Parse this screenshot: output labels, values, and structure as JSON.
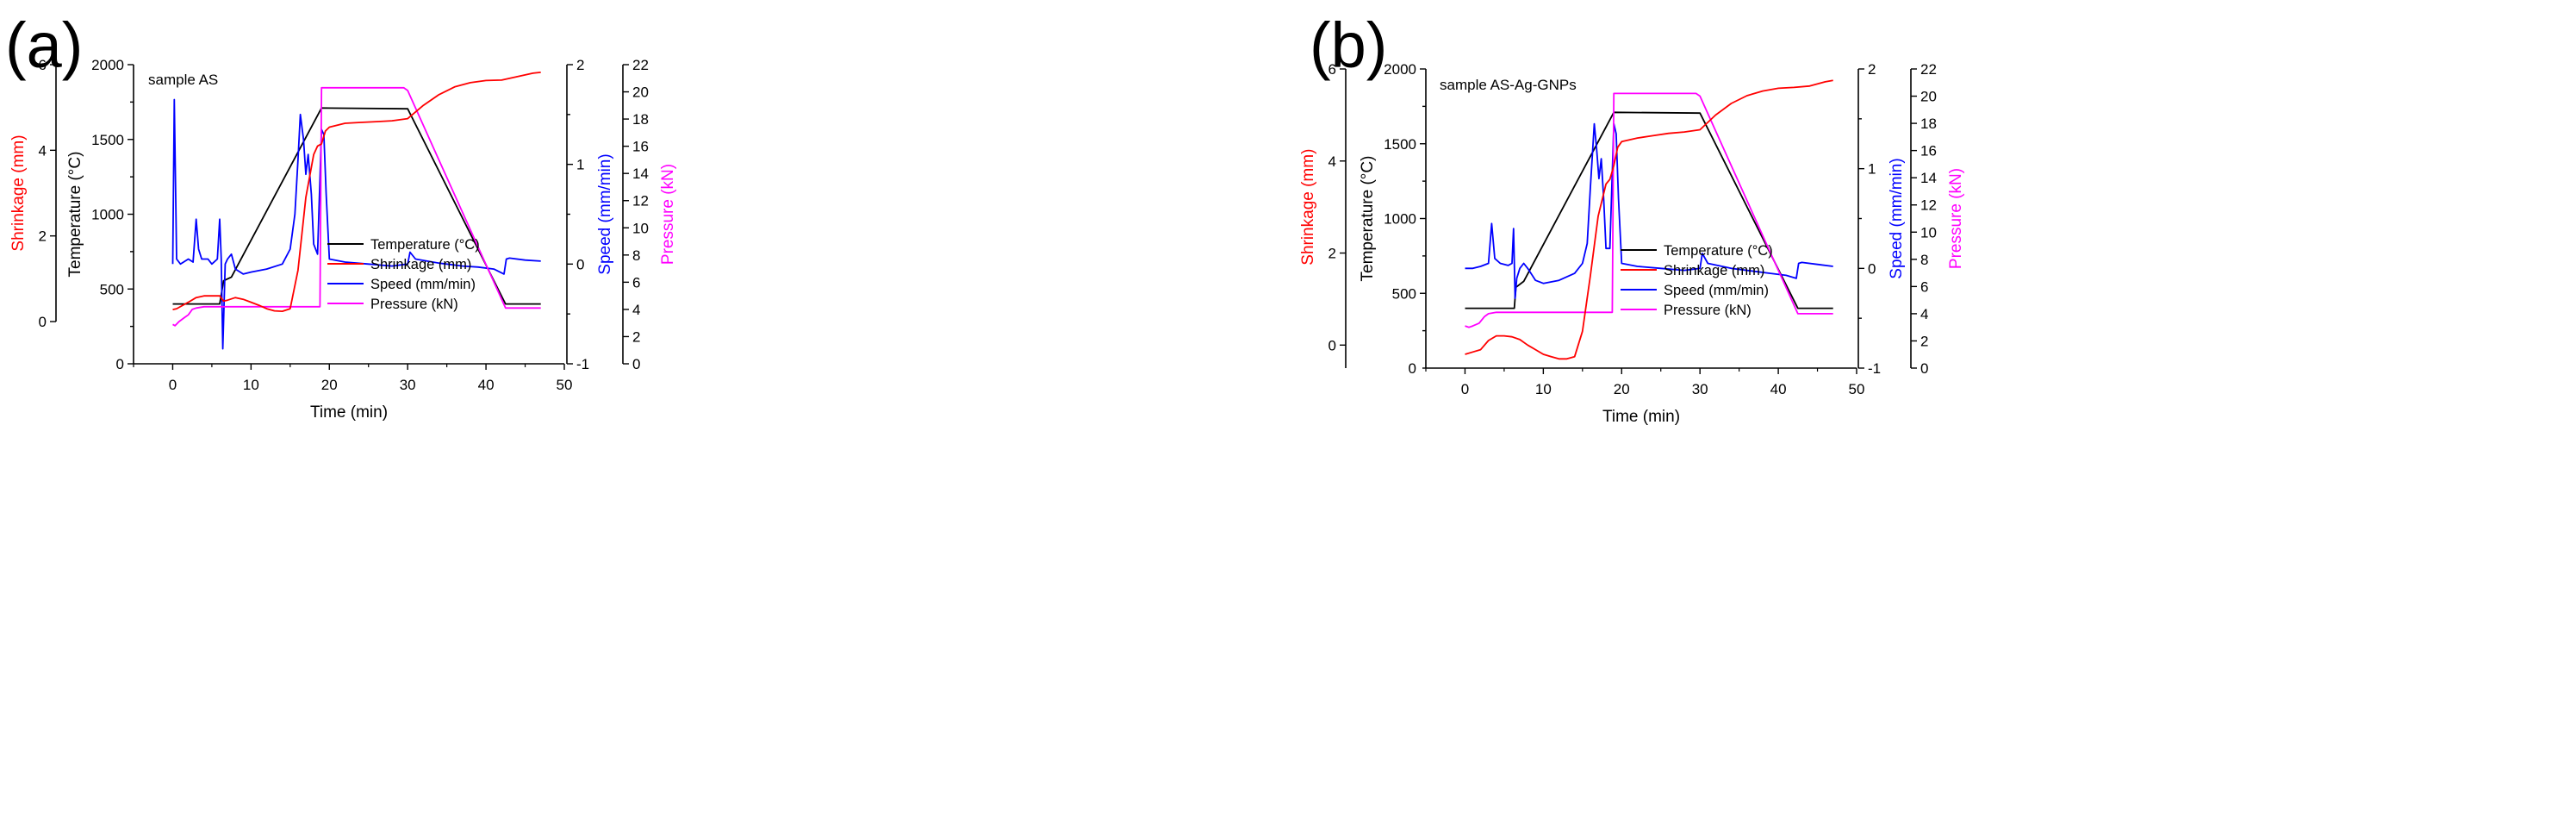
{
  "chart_data": [
    {
      "type": "line",
      "panel_label": "(a)",
      "annotation": "sample AS",
      "xlabel": "Time (min)",
      "xlim": [
        -5,
        50
      ],
      "xticks": [
        0,
        10,
        20,
        30,
        40,
        50
      ],
      "axes": {
        "shrinkage": {
          "label": "Shrinkage (mm)",
          "color": "#ff0000",
          "range": [
            0,
            6
          ],
          "ticks": [
            0,
            2,
            4,
            6
          ]
        },
        "temperature": {
          "label": "Temperature (°C)",
          "color": "#000000",
          "range": [
            0,
            2000
          ],
          "ticks": [
            0,
            500,
            1000,
            1500,
            2000
          ]
        },
        "speed": {
          "label": "Speed (mm/min)",
          "color": "#0000ff",
          "range": [
            -1,
            2
          ],
          "ticks": [
            -1,
            0,
            1,
            2
          ]
        },
        "pressure": {
          "label": "Pressure (kN)",
          "color": "#ff00ff",
          "range": [
            0,
            22
          ],
          "ticks": [
            0,
            2,
            4,
            6,
            8,
            10,
            12,
            14,
            16,
            18,
            20,
            22
          ]
        }
      },
      "legend_position": "bottom-right",
      "legend": [
        "Temperature (°C)",
        "Shrinkage (mm)",
        "Speed (mm/min)",
        "Pressure (kN)"
      ],
      "series": [
        {
          "name": "Temperature (°C)",
          "axis": "temperature",
          "color": "#000000",
          "x": [
            0,
            6,
            6.5,
            7.5,
            19,
            30,
            42.5,
            47
          ],
          "y": [
            400,
            400,
            555,
            580,
            1710,
            1705,
            400,
            400
          ]
        },
        {
          "name": "Shrinkage (mm)",
          "axis": "shrinkage",
          "color": "#ff0000",
          "x": [
            0,
            0.5,
            1,
            2,
            3,
            4,
            5,
            6,
            6.5,
            7,
            8,
            9,
            10,
            11,
            12,
            13,
            14,
            15,
            16,
            17,
            18,
            18.5,
            19,
            19.5,
            20,
            22,
            24,
            26,
            28,
            30,
            32,
            34,
            36,
            38,
            40,
            42,
            44,
            46,
            47
          ],
          "y": [
            0.28,
            0.3,
            0.35,
            0.45,
            0.56,
            0.6,
            0.6,
            0.6,
            0.48,
            0.5,
            0.56,
            0.52,
            0.45,
            0.38,
            0.3,
            0.25,
            0.24,
            0.3,
            1.2,
            2.9,
            3.9,
            4.1,
            4.15,
            4.45,
            4.54,
            4.63,
            4.65,
            4.67,
            4.69,
            4.74,
            5.05,
            5.3,
            5.48,
            5.58,
            5.63,
            5.64,
            5.72,
            5.8,
            5.82
          ]
        },
        {
          "name": "Speed (mm/min)",
          "axis": "speed",
          "color": "#0000ff",
          "x": [
            0,
            0.2,
            0.5,
            1,
            2,
            2.6,
            3,
            3.3,
            3.7,
            4.5,
            5,
            5.7,
            6,
            6.2,
            6.4,
            6.7,
            7,
            7.5,
            8,
            9,
            10,
            12,
            14,
            15,
            15.6,
            16,
            16.3,
            16.7,
            17,
            17.3,
            17.7,
            18,
            18.5,
            19,
            19.3,
            19.6,
            20,
            22,
            25,
            28,
            30,
            30.3,
            31,
            34,
            37,
            39,
            41,
            42.3,
            42.6,
            43,
            45,
            47
          ],
          "y": [
            0,
            1.65,
            0.05,
            0,
            0.05,
            0.02,
            0.45,
            0.15,
            0.05,
            0.05,
            0,
            0.05,
            0.45,
            0.05,
            -0.85,
            0,
            0.05,
            0.1,
            -0.05,
            -0.1,
            -0.08,
            -0.05,
            0,
            0.15,
            0.5,
            1.05,
            1.5,
            1.25,
            0.9,
            1.1,
            0.7,
            0.2,
            0.1,
            1.35,
            1.3,
            0.7,
            0.05,
            0.02,
            0,
            -0.02,
            0,
            0.12,
            0.05,
            0.01,
            -0.02,
            -0.03,
            -0.05,
            -0.1,
            0.05,
            0.06,
            0.04,
            0.03
          ]
        },
        {
          "name": "Pressure (kN)",
          "axis": "pressure",
          "color": "#ff00ff",
          "x": [
            0,
            0.3,
            0.8,
            1.5,
            2,
            2.5,
            3,
            4,
            6,
            10,
            15,
            18.8,
            19,
            19.5,
            20,
            25,
            29.5,
            30,
            42.5,
            43,
            47
          ],
          "y": [
            2.9,
            2.8,
            3.1,
            3.4,
            3.6,
            4,
            4.1,
            4.2,
            4.2,
            4.2,
            4.2,
            4.2,
            20.3,
            20.3,
            20.3,
            20.3,
            20.3,
            20.1,
            4.1,
            4.1,
            4.1
          ]
        }
      ]
    },
    {
      "type": "line",
      "panel_label": "(b)",
      "annotation": "sample AS-Ag-GNPs",
      "xlabel": "Time (min)",
      "xlim": [
        -5,
        50
      ],
      "xticks": [
        0,
        10,
        20,
        30,
        40,
        50
      ],
      "axes": {
        "shrinkage": {
          "label": "Shrinkage (mm)",
          "color": "#ff0000",
          "range": [
            -0.5,
            6
          ],
          "ticks": [
            0,
            2,
            4,
            6
          ]
        },
        "temperature": {
          "label": "Temperature (°C)",
          "color": "#000000",
          "range": [
            0,
            2000
          ],
          "ticks": [
            500,
            1000,
            1500,
            2000
          ]
        },
        "speed": {
          "label": "Speed (mm/min)",
          "color": "#0000ff",
          "range": [
            -1,
            2
          ],
          "ticks": [
            -1,
            0,
            1,
            2
          ]
        },
        "pressure": {
          "label": "Pressure (kN)",
          "color": "#ff00ff",
          "range": [
            0,
            22
          ],
          "ticks": [
            0,
            2,
            4,
            6,
            8,
            10,
            12,
            14,
            16,
            18,
            20,
            22
          ]
        }
      },
      "legend_position": "bottom-right",
      "legend": [
        "Temperature (°C)",
        "Shrinkage (mm)",
        "Speed (mm/min)",
        "Pressure (kN)"
      ],
      "series": [
        {
          "name": "Temperature (°C)",
          "axis": "temperature",
          "color": "#000000",
          "x": [
            0,
            6.3,
            6.5,
            7.5,
            19,
            30,
            42.5,
            47
          ],
          "y": [
            400,
            400,
            540,
            580,
            1710,
            1705,
            400,
            400
          ]
        },
        {
          "name": "Shrinkage (mm)",
          "axis": "shrinkage",
          "color": "#ff0000",
          "x": [
            0,
            1,
            2,
            3,
            4,
            5,
            6,
            7,
            8,
            9,
            10,
            11,
            12,
            13,
            14,
            15,
            16,
            17,
            18,
            18.5,
            19,
            19.5,
            20,
            22,
            24,
            26,
            28,
            30,
            32,
            34,
            36,
            38,
            40,
            42,
            44,
            46,
            47
          ],
          "y": [
            -0.2,
            -0.15,
            -0.1,
            0.1,
            0.2,
            0.2,
            0.18,
            0.12,
            0.0,
            -0.1,
            -0.2,
            -0.25,
            -0.3,
            -0.3,
            -0.25,
            0.3,
            1.5,
            2.8,
            3.5,
            3.6,
            3.9,
            4.3,
            4.42,
            4.5,
            4.55,
            4.6,
            4.63,
            4.68,
            5.0,
            5.25,
            5.42,
            5.52,
            5.58,
            5.6,
            5.63,
            5.72,
            5.75
          ]
        },
        {
          "name": "Speed (mm/min)",
          "axis": "speed",
          "color": "#0000ff",
          "x": [
            0,
            1,
            2,
            3,
            3.4,
            3.8,
            4.5,
            5.5,
            6,
            6.2,
            6.4,
            6.6,
            7,
            7.5,
            8,
            9,
            10,
            12,
            14,
            15,
            15.6,
            16,
            16.5,
            16.8,
            17.1,
            17.4,
            17.7,
            18,
            18.5,
            19,
            19.3,
            19.6,
            20,
            22,
            25,
            28,
            30,
            30.3,
            31,
            34,
            37,
            39,
            41,
            42.3,
            42.6,
            43,
            45,
            47
          ],
          "y": [
            0,
            0,
            0.02,
            0.05,
            0.45,
            0.1,
            0.05,
            0.03,
            0.05,
            0.4,
            -0.3,
            -0.1,
            0,
            0.05,
            0,
            -0.12,
            -0.15,
            -0.12,
            -0.05,
            0.05,
            0.25,
            0.8,
            1.45,
            1.2,
            0.9,
            1.1,
            0.7,
            0.2,
            0.2,
            1.45,
            1.35,
            0.7,
            0.05,
            0.02,
            0,
            -0.02,
            0,
            0.15,
            0.05,
            0,
            -0.03,
            -0.05,
            -0.07,
            -0.1,
            0.05,
            0.06,
            0.04,
            0.02
          ]
        },
        {
          "name": "Pressure (kN)",
          "axis": "pressure",
          "color": "#ff00ff",
          "x": [
            0,
            0.5,
            1,
            1.8,
            2.5,
            3,
            4,
            8,
            15,
            18.8,
            19,
            19.5,
            20,
            25,
            29.5,
            30,
            42.5,
            43,
            47
          ],
          "y": [
            3.1,
            3.0,
            3.1,
            3.3,
            3.8,
            4.0,
            4.1,
            4.1,
            4.1,
            4.1,
            20.2,
            20.2,
            20.2,
            20.2,
            20.2,
            20.0,
            4.0,
            4.0,
            4.0
          ]
        }
      ]
    }
  ]
}
